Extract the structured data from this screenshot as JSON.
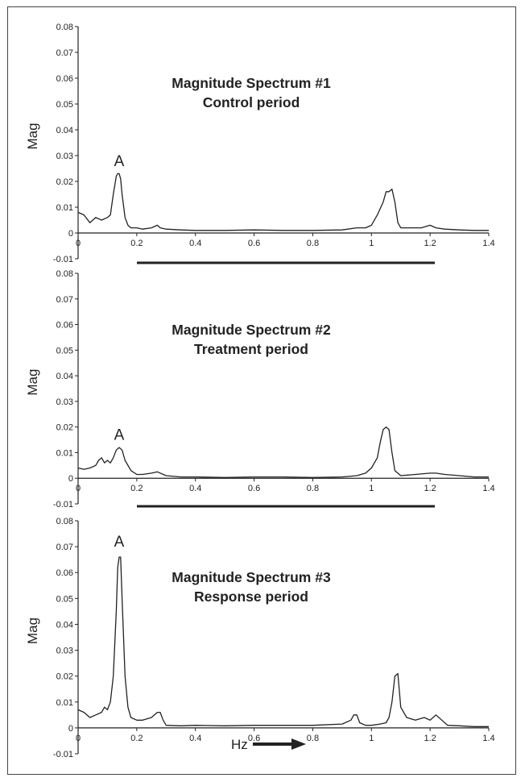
{
  "chart_data": [
    {
      "type": "line",
      "title": "Magnitude Spectrum #1",
      "subtitle": "Control period",
      "ylabel": "Mag",
      "xlabel": "",
      "xlim": [
        0,
        1.4
      ],
      "ylim": [
        -0.01,
        0.08
      ],
      "xticks": [
        "0",
        "0.2",
        "0.4",
        "0.6",
        "0.8",
        "1",
        "1.2",
        "1.4"
      ],
      "yticks": [
        "-0.01",
        "0",
        "0.01",
        "0.02",
        "0.03",
        "0.04",
        "0.05",
        "0.06",
        "0.07",
        "0.08"
      ],
      "annotation": {
        "text": "A",
        "x": 0.14,
        "y": 0.026
      },
      "grid": false,
      "series": [
        {
          "x": [
            0,
            0.02,
            0.04,
            0.06,
            0.08,
            0.1,
            0.11,
            0.12,
            0.13,
            0.135,
            0.14,
            0.145,
            0.15,
            0.16,
            0.17,
            0.18,
            0.2,
            0.22,
            0.25,
            0.27,
            0.28,
            0.3,
            0.35,
            0.4,
            0.5,
            0.6,
            0.7,
            0.8,
            0.9,
            0.95,
            0.98,
            1.0,
            1.02,
            1.04,
            1.05,
            1.06,
            1.07,
            1.08,
            1.09,
            1.1,
            1.13,
            1.17,
            1.2,
            1.22,
            1.25,
            1.3,
            1.35,
            1.4
          ],
          "y": [
            0.008,
            0.007,
            0.004,
            0.006,
            0.005,
            0.006,
            0.007,
            0.015,
            0.022,
            0.023,
            0.023,
            0.021,
            0.015,
            0.006,
            0.003,
            0.002,
            0.002,
            0.0015,
            0.002,
            0.003,
            0.002,
            0.0015,
            0.0012,
            0.001,
            0.001,
            0.0012,
            0.001,
            0.001,
            0.0012,
            0.002,
            0.002,
            0.003,
            0.007,
            0.012,
            0.016,
            0.016,
            0.017,
            0.012,
            0.004,
            0.002,
            0.002,
            0.002,
            0.003,
            0.002,
            0.0015,
            0.0012,
            0.001,
            0.001
          ]
        }
      ]
    },
    {
      "type": "line",
      "title": "Magnitude Spectrum #2",
      "subtitle": "Treatment period",
      "ylabel": "Mag",
      "xlabel": "",
      "xlim": [
        0,
        1.4
      ],
      "ylim": [
        -0.01,
        0.08
      ],
      "xticks": [
        "0",
        "0.2",
        "0.4",
        "0.6",
        "0.8",
        "1",
        "1.2",
        "1.4"
      ],
      "yticks": [
        "-0.01",
        "0",
        "0.01",
        "0.02",
        "0.03",
        "0.04",
        "0.05",
        "0.06",
        "0.07",
        "0.08"
      ],
      "annotation": {
        "text": "A",
        "x": 0.14,
        "y": 0.015
      },
      "grid": false,
      "series": [
        {
          "x": [
            0,
            0.02,
            0.04,
            0.06,
            0.07,
            0.08,
            0.09,
            0.1,
            0.11,
            0.12,
            0.13,
            0.14,
            0.15,
            0.16,
            0.18,
            0.2,
            0.22,
            0.25,
            0.27,
            0.3,
            0.35,
            0.4,
            0.5,
            0.6,
            0.7,
            0.8,
            0.9,
            0.95,
            0.98,
            1.0,
            1.02,
            1.03,
            1.04,
            1.05,
            1.06,
            1.07,
            1.08,
            1.1,
            1.15,
            1.2,
            1.22,
            1.25,
            1.3,
            1.35,
            1.4
          ],
          "y": [
            0.004,
            0.0035,
            0.004,
            0.005,
            0.007,
            0.008,
            0.006,
            0.007,
            0.006,
            0.008,
            0.011,
            0.012,
            0.011,
            0.007,
            0.003,
            0.0015,
            0.0015,
            0.002,
            0.0025,
            0.001,
            0.0005,
            0.0005,
            0.0003,
            0.0005,
            0.0005,
            0.0003,
            0.0005,
            0.001,
            0.002,
            0.004,
            0.008,
            0.014,
            0.019,
            0.02,
            0.019,
            0.01,
            0.003,
            0.001,
            0.0015,
            0.002,
            0.002,
            0.0015,
            0.001,
            0.0005,
            0.0005
          ]
        }
      ]
    },
    {
      "type": "line",
      "title": "Magnitude Spectrum #3",
      "subtitle": "Response period",
      "ylabel": "Mag",
      "xlabel": "Hz",
      "xlim": [
        0,
        1.4
      ],
      "ylim": [
        -0.01,
        0.08
      ],
      "xticks": [
        "0",
        "0.2",
        "0.4",
        "0.6",
        "0.8",
        "1",
        "1.2",
        "1.4"
      ],
      "yticks": [
        "-0.01",
        "0",
        "0.01",
        "0.02",
        "0.03",
        "0.04",
        "0.05",
        "0.06",
        "0.07",
        "0.08"
      ],
      "annotation": {
        "text": "A",
        "x": 0.14,
        "y": 0.07
      },
      "grid": false,
      "series": [
        {
          "x": [
            0,
            0.02,
            0.04,
            0.06,
            0.08,
            0.09,
            0.1,
            0.11,
            0.12,
            0.13,
            0.135,
            0.14,
            0.145,
            0.15,
            0.16,
            0.17,
            0.18,
            0.2,
            0.22,
            0.25,
            0.27,
            0.28,
            0.29,
            0.3,
            0.35,
            0.4,
            0.5,
            0.6,
            0.7,
            0.8,
            0.9,
            0.93,
            0.94,
            0.95,
            0.96,
            0.98,
            1.0,
            1.03,
            1.05,
            1.06,
            1.07,
            1.08,
            1.09,
            1.1,
            1.12,
            1.15,
            1.18,
            1.2,
            1.22,
            1.24,
            1.26,
            1.3,
            1.35,
            1.4
          ],
          "y": [
            0.007,
            0.006,
            0.004,
            0.005,
            0.006,
            0.008,
            0.007,
            0.01,
            0.02,
            0.045,
            0.062,
            0.066,
            0.066,
            0.05,
            0.02,
            0.008,
            0.004,
            0.003,
            0.003,
            0.004,
            0.006,
            0.006,
            0.003,
            0.001,
            0.0008,
            0.001,
            0.0008,
            0.001,
            0.001,
            0.001,
            0.0015,
            0.003,
            0.005,
            0.005,
            0.002,
            0.001,
            0.001,
            0.0015,
            0.002,
            0.004,
            0.01,
            0.02,
            0.021,
            0.008,
            0.004,
            0.003,
            0.004,
            0.003,
            0.005,
            0.003,
            0.001,
            0.0008,
            0.0005,
            0.0005
          ]
        }
      ]
    }
  ]
}
